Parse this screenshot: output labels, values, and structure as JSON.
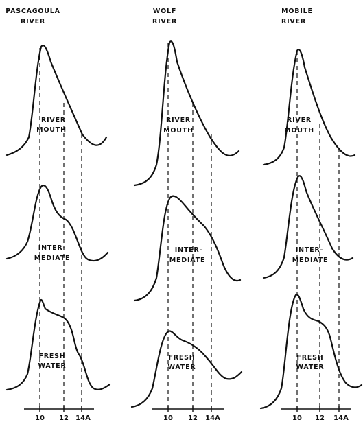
{
  "columns": [
    {
      "title_lines": [
        "PASCAGOULA",
        "RIVER"
      ],
      "panels": [
        {
          "label_lines": [
            "RIVER",
            "MOUTH"
          ]
        },
        {
          "label_lines": [
            "INTER-",
            "MEDIATE"
          ]
        },
        {
          "label_lines": [
            "FRESH",
            "WATER"
          ]
        }
      ],
      "ticks": [
        "10",
        "12",
        "14A"
      ]
    },
    {
      "title_lines": [
        "WOLF",
        "RIVER"
      ],
      "panels": [
        {
          "label_lines": [
            "RIVER",
            "MOUTH"
          ]
        },
        {
          "label_lines": [
            "INTER-",
            "MEDIATE"
          ]
        },
        {
          "label_lines": [
            "FRESH",
            "WATER"
          ]
        }
      ],
      "ticks": [
        "10",
        "12",
        "14A"
      ]
    },
    {
      "title_lines": [
        "MOBILE",
        "RIVER"
      ],
      "panels": [
        {
          "label_lines": [
            "RIVER",
            "MOUTH"
          ]
        },
        {
          "label_lines": [
            "INTER-",
            "MEDIATE"
          ]
        },
        {
          "label_lines": [
            "FRESH",
            "WATER"
          ]
        }
      ],
      "ticks": [
        "10",
        "12",
        "14A"
      ]
    }
  ]
}
